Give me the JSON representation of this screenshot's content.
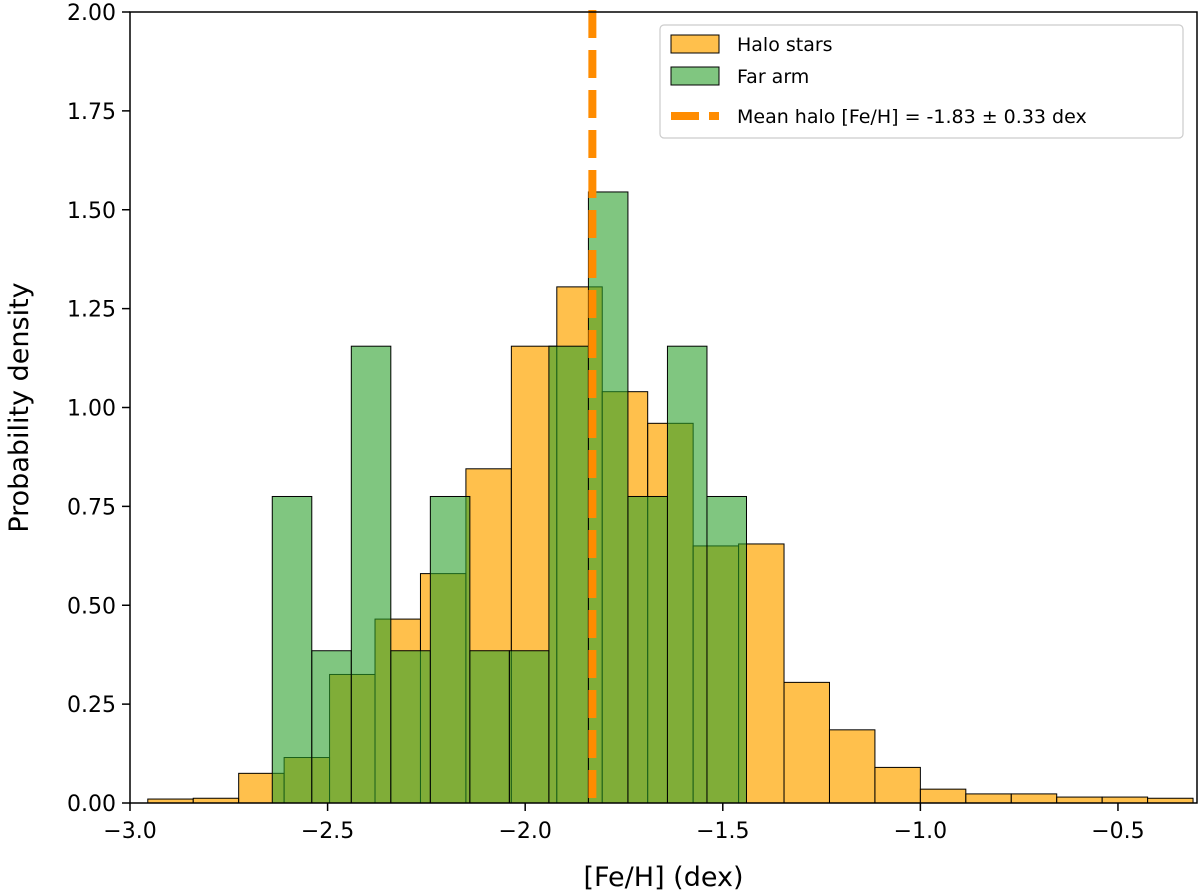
{
  "chart_data": {
    "type": "histogram",
    "xlabel": "[Fe/H] (dex)",
    "ylabel": "Probability density",
    "xlim": [
      -3.0,
      -0.3
    ],
    "ylim": [
      0,
      2.0
    ],
    "x_ticks": [
      -3.0,
      -2.5,
      -2.0,
      -1.5,
      -1.0,
      -0.5
    ],
    "x_tick_labels": [
      "−3.0",
      "−2.5",
      "−2.0",
      "−1.5",
      "−1.0",
      "−0.5"
    ],
    "y_ticks": [
      0.0,
      0.25,
      0.5,
      0.75,
      1.0,
      1.25,
      1.5,
      1.75,
      2.0
    ],
    "y_tick_labels": [
      "0.00",
      "0.25",
      "0.50",
      "0.75",
      "1.00",
      "1.25",
      "1.50",
      "1.75",
      "2.00"
    ],
    "mean_line": {
      "x": -1.83,
      "label": "Mean halo [Fe/H] = -1.83 ± 0.33 dex",
      "color": "#ff8c00"
    },
    "series": [
      {
        "name": "Halo stars",
        "color": "#ffa500",
        "opacity": 0.7,
        "bins": [
          {
            "x0": -2.955,
            "x1": -2.84,
            "value": 0.01
          },
          {
            "x0": -2.84,
            "x1": -2.725,
            "value": 0.012
          },
          {
            "x0": -2.725,
            "x1": -2.61,
            "value": 0.075
          },
          {
            "x0": -2.61,
            "x1": -2.495,
            "value": 0.115
          },
          {
            "x0": -2.495,
            "x1": -2.38,
            "value": 0.325
          },
          {
            "x0": -2.38,
            "x1": -2.265,
            "value": 0.465
          },
          {
            "x0": -2.265,
            "x1": -2.15,
            "value": 0.58
          },
          {
            "x0": -2.15,
            "x1": -2.035,
            "value": 0.845
          },
          {
            "x0": -2.035,
            "x1": -1.92,
            "value": 1.155
          },
          {
            "x0": -1.92,
            "x1": -1.805,
            "value": 1.305
          },
          {
            "x0": -1.805,
            "x1": -1.69,
            "value": 1.04
          },
          {
            "x0": -1.69,
            "x1": -1.575,
            "value": 0.96
          },
          {
            "x0": -1.575,
            "x1": -1.46,
            "value": 0.65
          },
          {
            "x0": -1.46,
            "x1": -1.345,
            "value": 0.655
          },
          {
            "x0": -1.345,
            "x1": -1.23,
            "value": 0.305
          },
          {
            "x0": -1.23,
            "x1": -1.115,
            "value": 0.185
          },
          {
            "x0": -1.115,
            "x1": -1.0,
            "value": 0.09
          },
          {
            "x0": -1.0,
            "x1": -0.885,
            "value": 0.035
          },
          {
            "x0": -0.885,
            "x1": -0.77,
            "value": 0.023
          },
          {
            "x0": -0.77,
            "x1": -0.655,
            "value": 0.023
          },
          {
            "x0": -0.655,
            "x1": -0.54,
            "value": 0.015
          },
          {
            "x0": -0.54,
            "x1": -0.425,
            "value": 0.015
          },
          {
            "x0": -0.425,
            "x1": -0.31,
            "value": 0.012
          }
        ]
      },
      {
        "name": "Far arm",
        "color": "#2ca02c",
        "opacity": 0.6,
        "bins": [
          {
            "x0": -2.64,
            "x1": -2.54,
            "value": 0.775
          },
          {
            "x0": -2.54,
            "x1": -2.44,
            "value": 0.385
          },
          {
            "x0": -2.44,
            "x1": -2.34,
            "value": 1.155
          },
          {
            "x0": -2.34,
            "x1": -2.24,
            "value": 0.385
          },
          {
            "x0": -2.24,
            "x1": -2.14,
            "value": 0.775
          },
          {
            "x0": -2.14,
            "x1": -2.04,
            "value": 0.385
          },
          {
            "x0": -2.04,
            "x1": -1.94,
            "value": 0.385
          },
          {
            "x0": -1.94,
            "x1": -1.84,
            "value": 1.155
          },
          {
            "x0": -1.84,
            "x1": -1.74,
            "value": 1.545
          },
          {
            "x0": -1.74,
            "x1": -1.64,
            "value": 0.775
          },
          {
            "x0": -1.64,
            "x1": -1.54,
            "value": 1.155
          },
          {
            "x0": -1.54,
            "x1": -1.44,
            "value": 0.775
          }
        ]
      }
    ]
  }
}
